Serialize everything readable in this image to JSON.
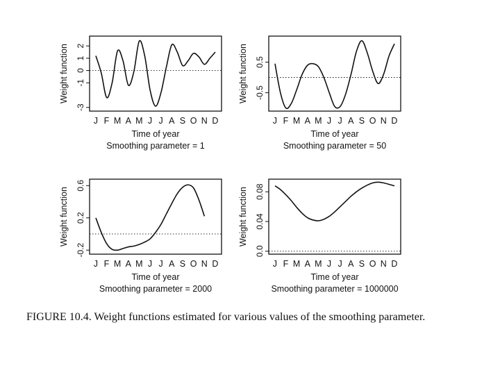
{
  "caption": "FIGURE 10.4. Weight functions estimated for various values of the smoothing parameter.",
  "chart_data": [
    {
      "type": "line",
      "xlabel": "Time of year",
      "subtitle": "Smoothing parameter =  1",
      "ylabel": "Weight function",
      "categories": [
        "J",
        "F",
        "M",
        "A",
        "M",
        "J",
        "J",
        "A",
        "S",
        "O",
        "N",
        "D"
      ],
      "yticks": [
        -3,
        -1,
        0,
        1,
        2
      ],
      "ytick_labels": [
        "-3",
        "-1",
        "0",
        "1",
        "2"
      ],
      "ylim": [
        -3.3,
        2.8
      ],
      "zero_line": 0,
      "x": [
        1,
        1.5,
        2,
        2.5,
        3,
        3.5,
        4,
        4.5,
        5,
        5.5,
        6,
        6.5,
        7,
        7.5,
        8,
        8.5,
        9,
        9.5,
        10,
        10.5,
        11,
        11.5,
        12
      ],
      "values": [
        1.2,
        -0.2,
        -2.2,
        -1.0,
        1.6,
        0.8,
        -1.2,
        -0.1,
        2.4,
        1.2,
        -1.6,
        -2.9,
        -1.8,
        0.3,
        2.1,
        1.5,
        0.4,
        0.8,
        1.4,
        1.1,
        0.5,
        1.0,
        1.5
      ]
    },
    {
      "type": "line",
      "xlabel": "Time of year",
      "subtitle": "Smoothing parameter =  50",
      "ylabel": "Weight function",
      "categories": [
        "J",
        "F",
        "M",
        "A",
        "M",
        "J",
        "J",
        "A",
        "S",
        "O",
        "N",
        "D"
      ],
      "yticks": [
        -0.5,
        0.5
      ],
      "ytick_labels": [
        "-0.5",
        "0.5"
      ],
      "ylim": [
        -1.1,
        1.35
      ],
      "zero_line": 0,
      "x": [
        1,
        1.5,
        2,
        2.5,
        3,
        3.5,
        4,
        4.5,
        5,
        5.5,
        6,
        6.5,
        7,
        7.5,
        8,
        8.5,
        9,
        9.5,
        10,
        10.5,
        11,
        11.5,
        12
      ],
      "values": [
        0.45,
        -0.5,
        -1.0,
        -0.85,
        -0.4,
        0.1,
        0.4,
        0.45,
        0.35,
        0.0,
        -0.5,
        -0.95,
        -0.95,
        -0.55,
        0.1,
        0.85,
        1.2,
        0.8,
        0.2,
        -0.2,
        0.1,
        0.7,
        1.1
      ]
    },
    {
      "type": "line",
      "xlabel": "Time of year",
      "subtitle": "Smoothing parameter =  2000",
      "ylabel": "Weight function",
      "categories": [
        "J",
        "F",
        "M",
        "A",
        "M",
        "J",
        "J",
        "A",
        "S",
        "O",
        "N",
        "D"
      ],
      "yticks": [
        -0.2,
        0.2,
        0.6
      ],
      "ytick_labels": [
        "-0.2",
        "0.2",
        "0.6"
      ],
      "ylim": [
        -0.25,
        0.68
      ],
      "zero_line": 0,
      "x": [
        1,
        1.5,
        2,
        2.5,
        3,
        3.5,
        4,
        4.5,
        5,
        5.5,
        6,
        6.5,
        7,
        7.5,
        8,
        8.5,
        9,
        9.5,
        10,
        10.5,
        11
      ],
      "values": [
        0.2,
        0.02,
        -0.12,
        -0.19,
        -0.2,
        -0.18,
        -0.16,
        -0.15,
        -0.13,
        -0.1,
        -0.06,
        0.02,
        0.12,
        0.25,
        0.38,
        0.5,
        0.58,
        0.61,
        0.57,
        0.42,
        0.22
      ]
    },
    {
      "type": "line",
      "xlabel": "Time of year",
      "subtitle": "Smoothing parameter =  1000000",
      "ylabel": "Weight function",
      "categories": [
        "J",
        "F",
        "M",
        "A",
        "M",
        "J",
        "J",
        "A",
        "S",
        "O",
        "N",
        "D"
      ],
      "yticks": [
        0.0,
        0.04,
        0.08
      ],
      "ytick_labels": [
        "0.0",
        "0.04",
        "0.08"
      ],
      "ylim": [
        -0.004,
        0.097
      ],
      "zero_line": 0,
      "x": [
        1,
        1.5,
        2,
        2.5,
        3,
        3.5,
        4,
        4.5,
        5,
        5.5,
        6,
        6.5,
        7,
        7.5,
        8,
        8.5,
        9,
        9.5,
        10,
        10.5,
        11,
        11.5,
        12
      ],
      "values": [
        0.088,
        0.083,
        0.076,
        0.068,
        0.059,
        0.051,
        0.045,
        0.042,
        0.041,
        0.043,
        0.047,
        0.053,
        0.06,
        0.067,
        0.074,
        0.08,
        0.085,
        0.089,
        0.092,
        0.093,
        0.092,
        0.09,
        0.088
      ]
    }
  ]
}
